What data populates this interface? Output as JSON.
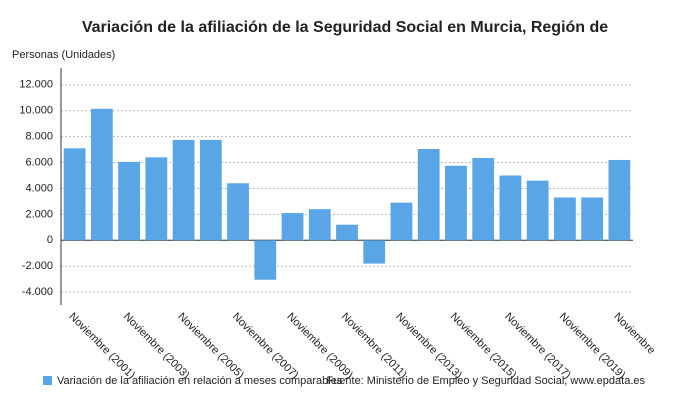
{
  "chart_data": {
    "type": "bar",
    "title": "Variación de la afiliación de la Seguridad Social en Murcia, Región de",
    "y_axis_label": "Personas (Unidades)",
    "source": "Fuente: Ministerio de Empleo y Seguridad Social, www.epdata.es",
    "categories": [
      "Noviembre (2001)",
      null,
      "Noviembre (2003)",
      null,
      "Noviembre (2005)",
      null,
      "Noviembre (2007)",
      null,
      "Noviembre (2009)",
      null,
      "Noviembre (2011)",
      null,
      "Noviembre (2013)",
      null,
      "Noviembre (2015)",
      null,
      "Noviembre (2017)",
      null,
      "Noviembre (2019)",
      null,
      "Noviembre"
    ],
    "series": [
      {
        "name": "Variación de la afiliación en relación a meses comparables",
        "color": "#5aa5e6",
        "values": [
          7100,
          10150,
          6050,
          6400,
          7750,
          7750,
          4400,
          -3050,
          2100,
          2400,
          1200,
          -1800,
          2900,
          7050,
          5750,
          6350,
          5000,
          4600,
          3300,
          3300,
          6200
        ]
      }
    ],
    "ylim": [
      -5000,
      13300
    ],
    "yticks": [
      {
        "value": -4000,
        "label": "-4.000"
      },
      {
        "value": -2000,
        "label": "-2.000"
      },
      0,
      {
        "value": 2000,
        "label": "2.000"
      },
      {
        "value": 4000,
        "label": "4.000"
      },
      {
        "value": 6000,
        "label": "6.000"
      },
      {
        "value": 8000,
        "label": "8.000"
      },
      {
        "value": 10000,
        "label": "10.000"
      },
      {
        "value": 12000,
        "label": "12.000"
      }
    ],
    "grid": true
  }
}
